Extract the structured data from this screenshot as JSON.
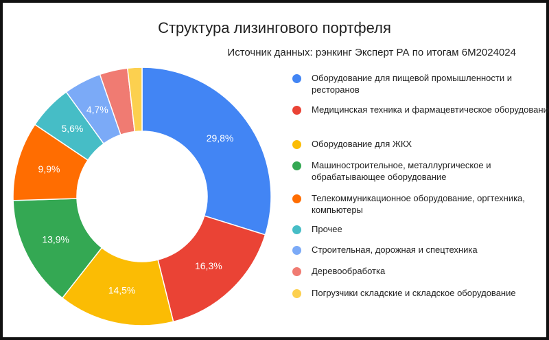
{
  "chart_data": {
    "type": "pie",
    "donut": true,
    "title": "Структура лизингового портфеля",
    "subtitle": "Источник данных: рэнкинг Эксперт РА по итогам 6М2024024",
    "legend_position": "right",
    "slices": [
      {
        "name": "Оборудование для пищевой промышленности и ресторанов",
        "value": 29.8,
        "label": "29,8%",
        "color": "#4285F4"
      },
      {
        "name": "Медицинская техника и фармацевтическое оборудование",
        "value": 16.3,
        "label": "16,3%",
        "color": "#EA4335"
      },
      {
        "name": "Оборудование для ЖКХ",
        "value": 14.5,
        "label": "14,5%",
        "color": "#FBBC04"
      },
      {
        "name": "Машиностроительное, металлургическое и обрабатывающее оборудование",
        "value": 13.9,
        "label": "13,9%",
        "color": "#34A853"
      },
      {
        "name": "Телекоммуникационное оборудование, оргтехника, компьютеры",
        "value": 9.9,
        "label": "9,9%",
        "color": "#FF6D01"
      },
      {
        "name": "Прочее",
        "value": 5.6,
        "label": "5,6%",
        "color": "#46BDC6"
      },
      {
        "name": "Строительная, дорожная и спецтехника",
        "value": 4.7,
        "label": "4,7%",
        "color": "#7BAAF7"
      },
      {
        "name": "Деревообработка",
        "value": 3.5,
        "label": "",
        "color": "#F07B72"
      },
      {
        "name": "Погрузчики складские и складское оборудование",
        "value": 1.8,
        "label": "",
        "color": "#FCD04F"
      }
    ]
  }
}
